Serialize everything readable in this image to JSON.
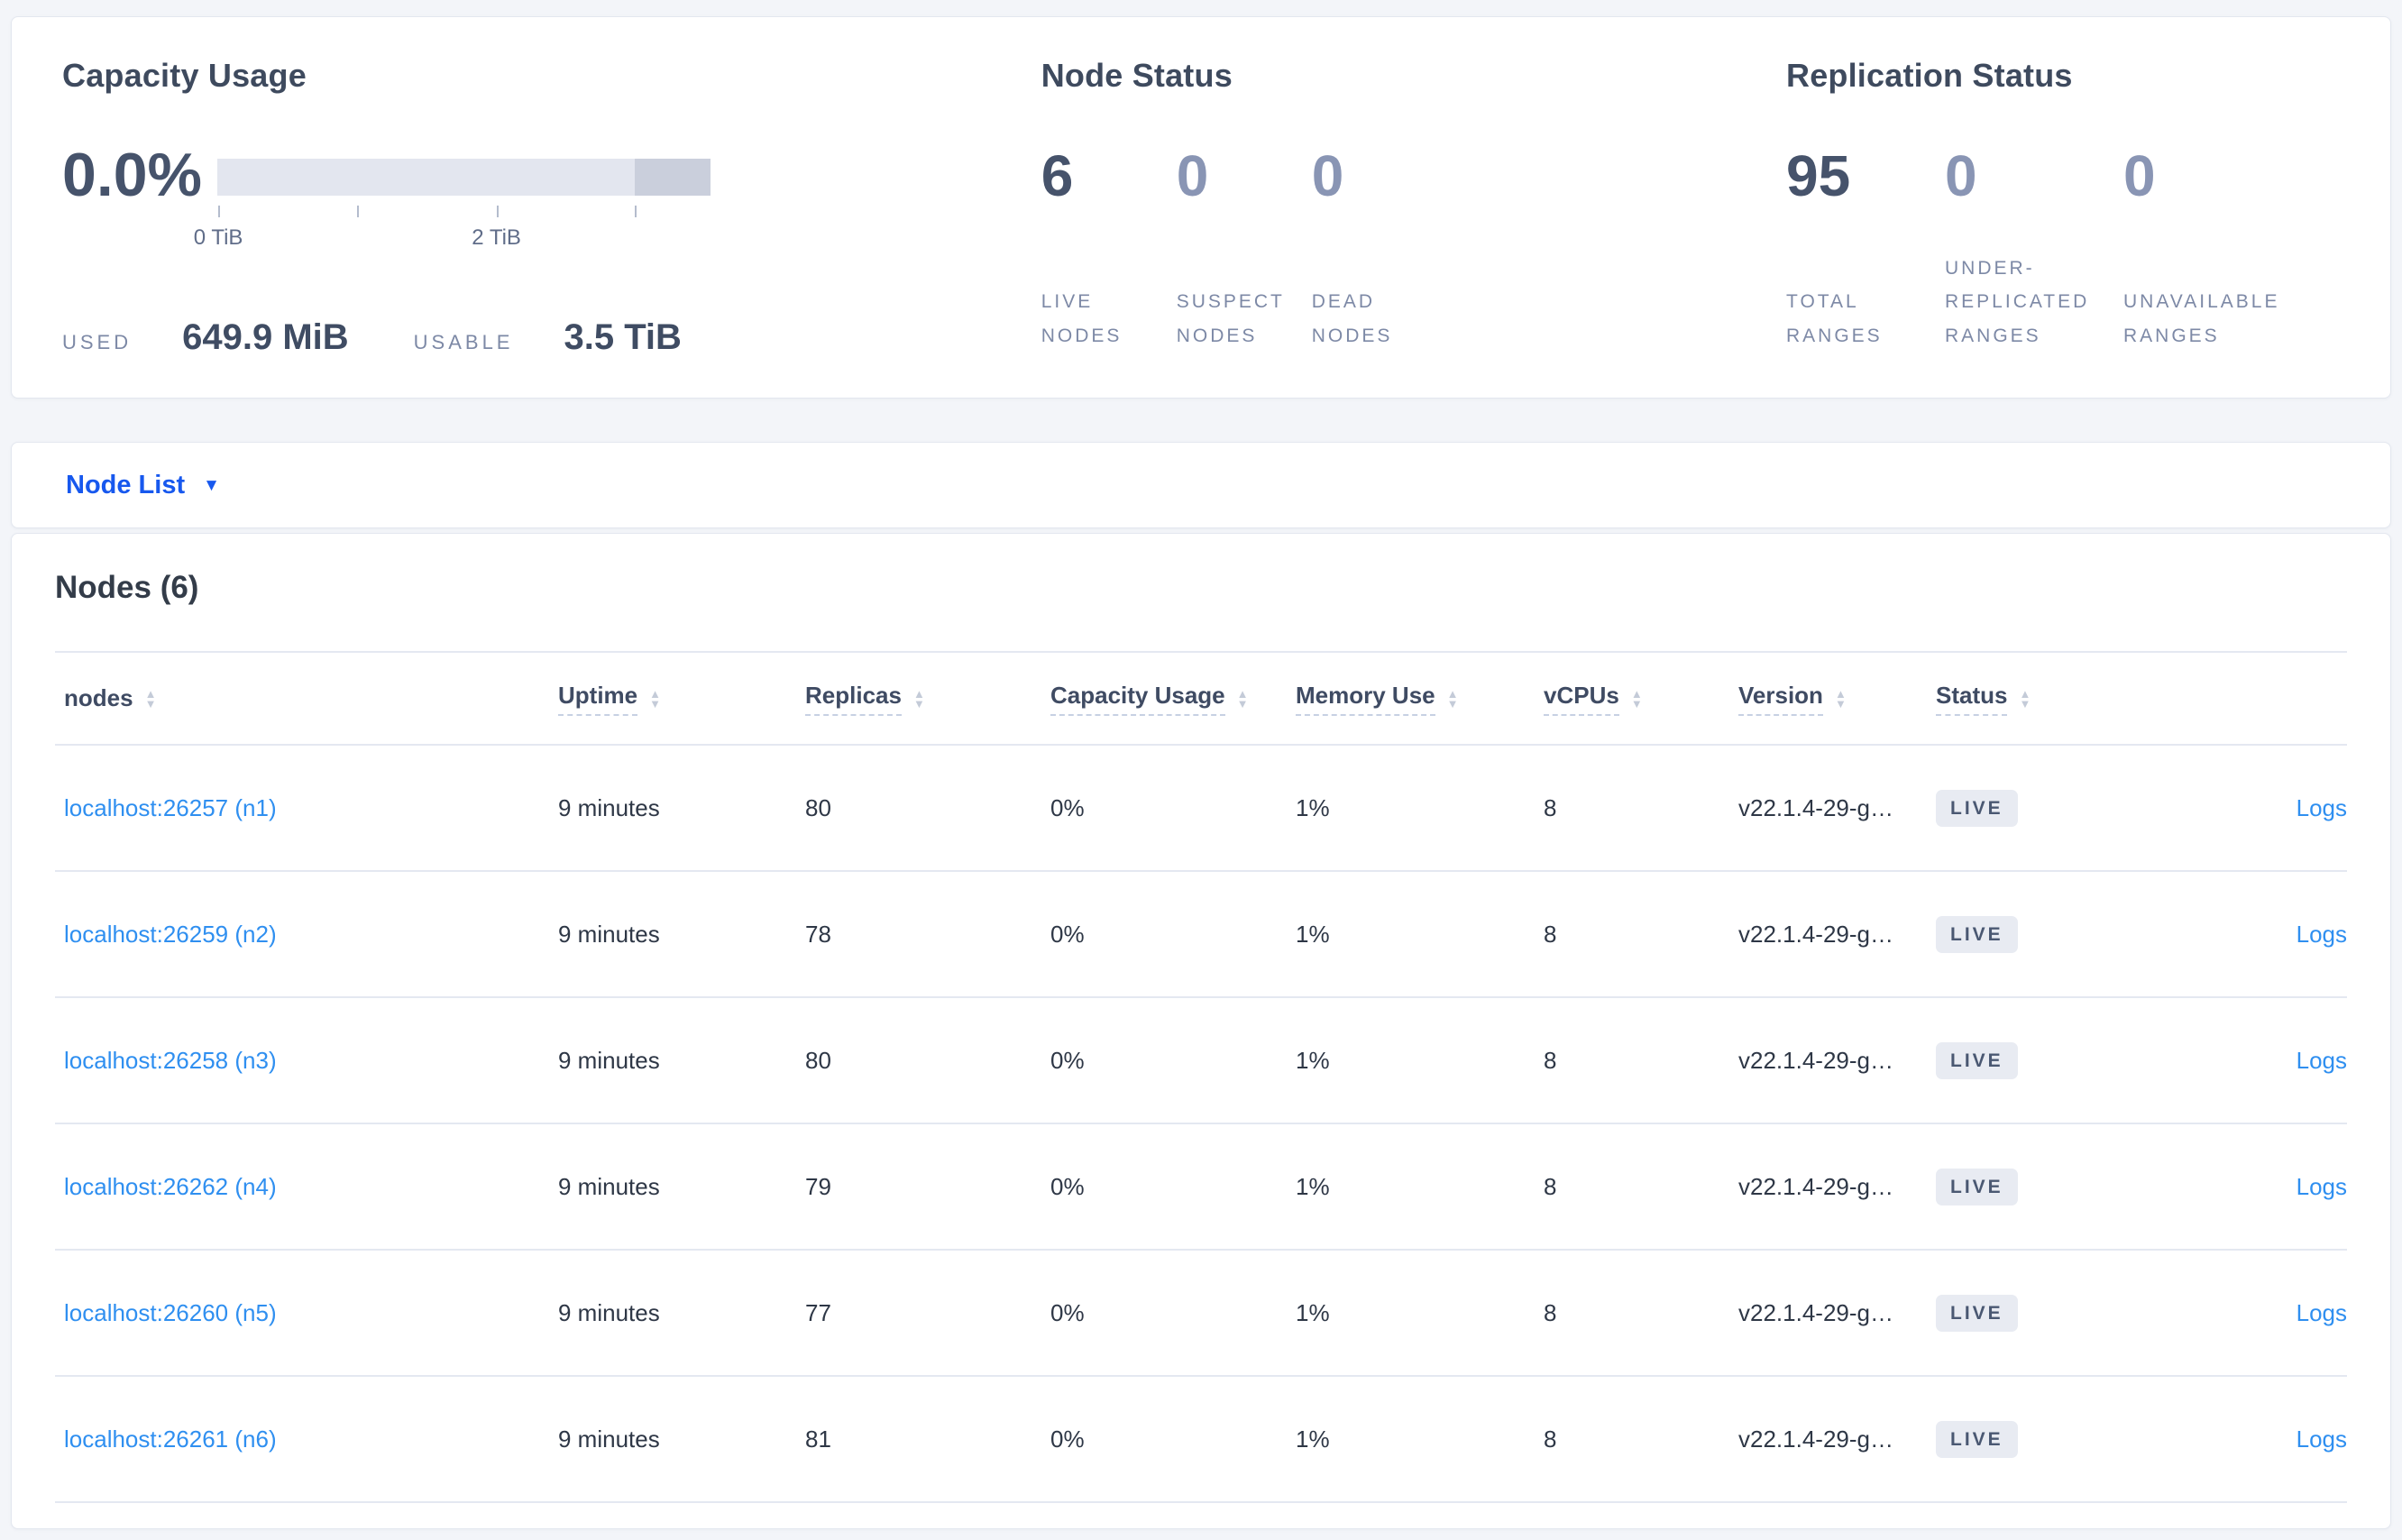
{
  "colors": {
    "accent_blue": "#1758ee",
    "table_link_blue": "#2f8ff0",
    "dark_text": "#3e4a5e",
    "muted_stat": "#8995b4",
    "badge_bg": "#e8ebf2",
    "bar_light": "#e3e6ef",
    "bar_dark": "#cacfdc",
    "page_bg": "#f3f5f9"
  },
  "summary": {
    "capacity": {
      "title": "Capacity Usage",
      "percent": "0.0%",
      "used_label": "USED",
      "used_value": "649.9 MiB",
      "usable_label": "USABLE",
      "usable_value": "3.5 TiB",
      "bar": {
        "dark_from_pct": 84.6,
        "ticks": [
          {
            "pos_pct": 0.2,
            "label": "0 TiB"
          },
          {
            "pos_pct": 28.3,
            "label": ""
          },
          {
            "pos_pct": 56.6,
            "label": "2 TiB"
          },
          {
            "pos_pct": 84.6,
            "label": ""
          }
        ]
      }
    },
    "node_status": {
      "title": "Node Status",
      "stats": [
        {
          "value": "6",
          "emphasis": true,
          "label_lines": [
            "LIVE",
            "NODES"
          ]
        },
        {
          "value": "0",
          "emphasis": false,
          "label_lines": [
            "SUSPECT",
            "NODES"
          ]
        },
        {
          "value": "0",
          "emphasis": false,
          "label_lines": [
            "DEAD",
            "NODES"
          ]
        }
      ]
    },
    "replication": {
      "title": "Replication Status",
      "stats": [
        {
          "value": "95",
          "emphasis": true,
          "label_lines": [
            "TOTAL",
            "RANGES"
          ]
        },
        {
          "value": "0",
          "emphasis": false,
          "label_lines": [
            "UNDER-",
            "REPLICATED",
            "RANGES"
          ]
        },
        {
          "value": "0",
          "emphasis": false,
          "label_lines": [
            "UNAVAILABLE",
            "RANGES"
          ]
        }
      ]
    }
  },
  "view_selector": {
    "label": "Node List"
  },
  "table": {
    "title": "Nodes (6)",
    "columns": [
      {
        "label": "nodes",
        "underline": false
      },
      {
        "label": "Uptime",
        "underline": true
      },
      {
        "label": "Replicas",
        "underline": true
      },
      {
        "label": "Capacity Usage",
        "underline": true
      },
      {
        "label": "Memory Use",
        "underline": true
      },
      {
        "label": "vCPUs",
        "underline": true
      },
      {
        "label": "Version",
        "underline": true
      },
      {
        "label": "Status",
        "underline": true
      }
    ],
    "logs_label": "Logs",
    "rows": [
      {
        "node": "localhost:26257 (n1)",
        "uptime": "9 minutes",
        "replicas": "80",
        "capacity": "0%",
        "memory": "1%",
        "vcpus": "8",
        "version": "v22.1.4-29-g…",
        "status": "LIVE",
        "logs": "Logs"
      },
      {
        "node": "localhost:26259 (n2)",
        "uptime": "9 minutes",
        "replicas": "78",
        "capacity": "0%",
        "memory": "1%",
        "vcpus": "8",
        "version": "v22.1.4-29-g…",
        "status": "LIVE",
        "logs": "Logs"
      },
      {
        "node": "localhost:26258 (n3)",
        "uptime": "9 minutes",
        "replicas": "80",
        "capacity": "0%",
        "memory": "1%",
        "vcpus": "8",
        "version": "v22.1.4-29-g…",
        "status": "LIVE",
        "logs": "Logs"
      },
      {
        "node": "localhost:26262 (n4)",
        "uptime": "9 minutes",
        "replicas": "79",
        "capacity": "0%",
        "memory": "1%",
        "vcpus": "8",
        "version": "v22.1.4-29-g…",
        "status": "LIVE",
        "logs": "Logs"
      },
      {
        "node": "localhost:26260 (n5)",
        "uptime": "9 minutes",
        "replicas": "77",
        "capacity": "0%",
        "memory": "1%",
        "vcpus": "8",
        "version": "v22.1.4-29-g…",
        "status": "LIVE",
        "logs": "Logs"
      },
      {
        "node": "localhost:26261 (n6)",
        "uptime": "9 minutes",
        "replicas": "81",
        "capacity": "0%",
        "memory": "1%",
        "vcpus": "8",
        "version": "v22.1.4-29-g…",
        "status": "LIVE",
        "logs": "Logs"
      }
    ]
  }
}
